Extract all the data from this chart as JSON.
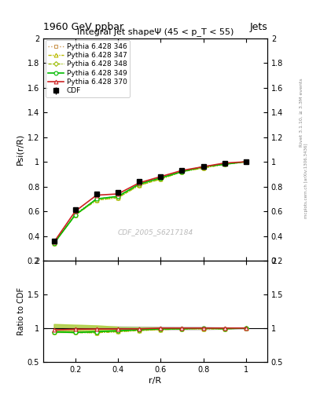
{
  "title_top": "1960 GeV ppbar",
  "title_right": "Jets",
  "main_title": "Integral jet shapeΨ (45 < p_T < 55)",
  "watermark": "CDF_2005_S6217184",
  "rivet_label": "Rivet 3.1.10, ≥ 3.3M events",
  "arxiv_label": "mcplots.cern.ch [arXiv:1306.3436]",
  "xlabel": "r/R",
  "ylabel_main": "Psi(r/R)",
  "ylabel_ratio": "Ratio to CDF",
  "x_data": [
    0.1,
    0.2,
    0.3,
    0.4,
    0.5,
    0.6,
    0.7,
    0.8,
    0.9,
    1.0
  ],
  "cdf_y": [
    0.36,
    0.61,
    0.74,
    0.75,
    0.84,
    0.88,
    0.93,
    0.96,
    0.99,
    1.0
  ],
  "cdf_yerr": [
    0.02,
    0.02,
    0.02,
    0.02,
    0.02,
    0.02,
    0.02,
    0.02,
    0.01,
    0.01
  ],
  "pythia_346_y": [
    0.34,
    0.58,
    0.7,
    0.72,
    0.82,
    0.87,
    0.92,
    0.96,
    0.98,
    1.0
  ],
  "pythia_347_y": [
    0.34,
    0.57,
    0.69,
    0.71,
    0.81,
    0.86,
    0.92,
    0.95,
    0.98,
    1.0
  ],
  "pythia_348_y": [
    0.34,
    0.57,
    0.69,
    0.71,
    0.81,
    0.86,
    0.92,
    0.95,
    0.98,
    1.0
  ],
  "pythia_349_y": [
    0.34,
    0.57,
    0.7,
    0.72,
    0.82,
    0.87,
    0.92,
    0.96,
    0.98,
    1.0
  ],
  "pythia_370_y": [
    0.35,
    0.6,
    0.73,
    0.74,
    0.83,
    0.88,
    0.93,
    0.96,
    0.99,
    1.0
  ],
  "color_346": "#cc9955",
  "color_347": "#bbbb00",
  "color_348": "#99bb00",
  "color_349": "#00bb00",
  "color_370": "#cc2222",
  "ylim_main": [
    0.2,
    2.0
  ],
  "ylim_ratio": [
    0.5,
    2.0
  ],
  "xlim": [
    0.05,
    1.1
  ],
  "yticks_main": [
    0.2,
    0.4,
    0.6,
    0.8,
    1.0,
    1.2,
    1.4,
    1.6,
    1.8,
    2.0
  ],
  "ytick_labels_main": [
    "0.2",
    "0.4",
    "0.6",
    "0.8",
    "1",
    "1.2",
    "1.4",
    "1.6",
    "1.8",
    "2"
  ],
  "yticks_ratio": [
    0.5,
    1.0,
    1.5,
    2.0
  ],
  "ytick_labels_ratio": [
    "0.5",
    "1",
    "1.5",
    "2"
  ],
  "xticks": [
    0.2,
    0.4,
    0.6,
    0.8,
    1.0
  ],
  "xtick_labels": [
    "0.2",
    "0.4",
    "0.6",
    "0.8",
    "1"
  ]
}
